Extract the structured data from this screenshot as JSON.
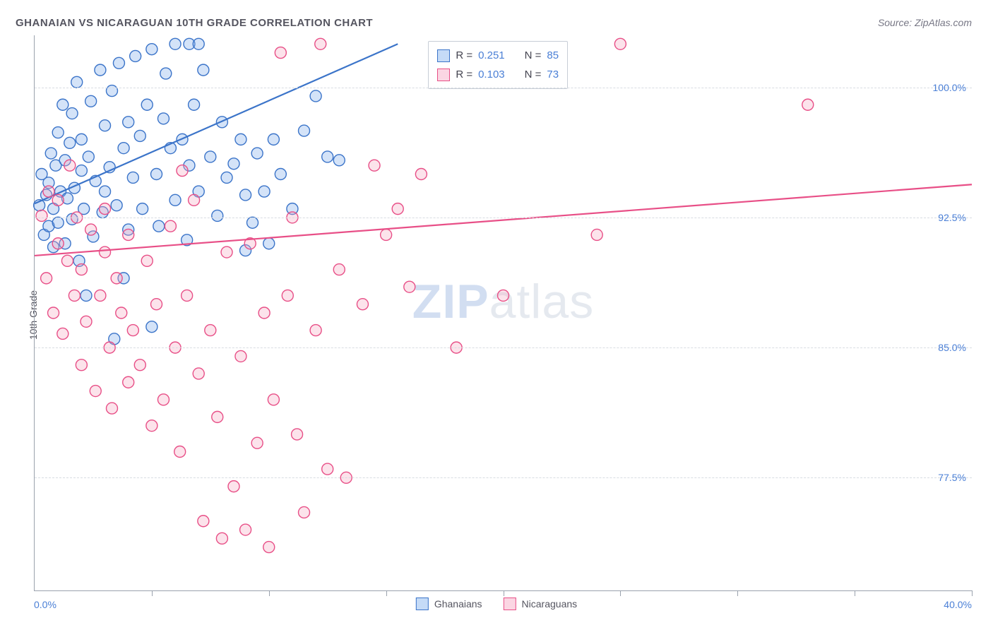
{
  "title": "GHANAIAN VS NICARAGUAN 10TH GRADE CORRELATION CHART",
  "source": "Source: ZipAtlas.com",
  "ylabel": "10th Grade",
  "watermark_a": "ZIP",
  "watermark_b": "atlas",
  "chart": {
    "type": "scatter",
    "xlim": [
      0,
      40
    ],
    "ylim": [
      71,
      103
    ],
    "xticks_major": [
      0,
      5,
      10,
      15,
      20,
      25,
      30,
      35,
      40
    ],
    "yticks": [
      77.5,
      85.0,
      92.5,
      100.0
    ],
    "x_origin_label": "0.0%",
    "x_max_label": "40.0%",
    "y_tick_labels": [
      "77.5%",
      "85.0%",
      "92.5%",
      "100.0%"
    ],
    "background_color": "#ffffff",
    "grid_color": "#d8dce2",
    "axis_color": "#9aa2ad",
    "marker_radius": 8,
    "marker_stroke_width": 1.4,
    "marker_fill_opacity": 0.32,
    "line_width": 2.2,
    "series": [
      {
        "label": "Ghanaians",
        "color_stroke": "#3b74c9",
        "color_fill": "#7aa8e8",
        "R": "0.251",
        "N": "85",
        "trend": {
          "x1": 0,
          "y1": 93.3,
          "x2": 15.5,
          "y2": 102.5
        },
        "points": [
          [
            0.2,
            93.2
          ],
          [
            0.3,
            95.0
          ],
          [
            0.4,
            91.5
          ],
          [
            0.5,
            93.8
          ],
          [
            0.6,
            92.0
          ],
          [
            0.6,
            94.5
          ],
          [
            0.7,
            96.2
          ],
          [
            0.8,
            90.8
          ],
          [
            0.8,
            93.0
          ],
          [
            0.9,
            95.5
          ],
          [
            1.0,
            97.4
          ],
          [
            1.0,
            92.2
          ],
          [
            1.1,
            94.0
          ],
          [
            1.2,
            99.0
          ],
          [
            1.3,
            91.0
          ],
          [
            1.3,
            95.8
          ],
          [
            1.4,
            93.6
          ],
          [
            1.5,
            96.8
          ],
          [
            1.6,
            98.5
          ],
          [
            1.6,
            92.4
          ],
          [
            1.7,
            94.2
          ],
          [
            1.8,
            100.3
          ],
          [
            1.9,
            90.0
          ],
          [
            2.0,
            95.2
          ],
          [
            2.0,
            97.0
          ],
          [
            2.1,
            93.0
          ],
          [
            2.2,
            88.0
          ],
          [
            2.3,
            96.0
          ],
          [
            2.4,
            99.2
          ],
          [
            2.5,
            91.4
          ],
          [
            2.6,
            94.6
          ],
          [
            2.8,
            101.0
          ],
          [
            2.9,
            92.8
          ],
          [
            3.0,
            97.8
          ],
          [
            3.0,
            94.0
          ],
          [
            3.2,
            95.4
          ],
          [
            3.3,
            99.8
          ],
          [
            3.4,
            85.5
          ],
          [
            3.5,
            93.2
          ],
          [
            3.6,
            101.4
          ],
          [
            3.8,
            96.5
          ],
          [
            4.0,
            91.8
          ],
          [
            4.0,
            98.0
          ],
          [
            4.2,
            94.8
          ],
          [
            4.3,
            101.8
          ],
          [
            4.5,
            97.2
          ],
          [
            4.6,
            93.0
          ],
          [
            4.8,
            99.0
          ],
          [
            5.0,
            86.2
          ],
          [
            5.0,
            102.2
          ],
          [
            5.2,
            95.0
          ],
          [
            5.3,
            92.0
          ],
          [
            5.5,
            98.2
          ],
          [
            5.6,
            100.8
          ],
          [
            5.8,
            96.5
          ],
          [
            6.0,
            93.5
          ],
          [
            6.0,
            102.5
          ],
          [
            6.3,
            97.0
          ],
          [
            6.5,
            91.2
          ],
          [
            6.6,
            95.5
          ],
          [
            6.6,
            102.5
          ],
          [
            6.8,
            99.0
          ],
          [
            7.0,
            94.0
          ],
          [
            7.0,
            102.5
          ],
          [
            7.2,
            101.0
          ],
          [
            7.5,
            96.0
          ],
          [
            7.8,
            92.6
          ],
          [
            8.0,
            98.0
          ],
          [
            8.2,
            94.8
          ],
          [
            8.5,
            95.6
          ],
          [
            8.8,
            97.0
          ],
          [
            9.0,
            90.6
          ],
          [
            9.0,
            93.8
          ],
          [
            9.3,
            92.2
          ],
          [
            9.5,
            96.2
          ],
          [
            9.8,
            94.0
          ],
          [
            10.0,
            91.0
          ],
          [
            10.2,
            97.0
          ],
          [
            10.5,
            95.0
          ],
          [
            11.0,
            93.0
          ],
          [
            11.5,
            97.5
          ],
          [
            12.0,
            99.5
          ],
          [
            12.5,
            96.0
          ],
          [
            13.0,
            95.8
          ],
          [
            3.8,
            89.0
          ]
        ]
      },
      {
        "label": "Nicaraguans",
        "color_stroke": "#e84f87",
        "color_fill": "#f7a8c2",
        "R": "0.103",
        "N": "73",
        "trend": {
          "x1": 0,
          "y1": 90.3,
          "x2": 40,
          "y2": 94.4
        },
        "points": [
          [
            0.3,
            92.6
          ],
          [
            0.5,
            89.0
          ],
          [
            0.6,
            94.0
          ],
          [
            0.8,
            87.0
          ],
          [
            1.0,
            91.0
          ],
          [
            1.0,
            93.5
          ],
          [
            1.2,
            85.8
          ],
          [
            1.4,
            90.0
          ],
          [
            1.5,
            95.5
          ],
          [
            1.7,
            88.0
          ],
          [
            1.8,
            92.5
          ],
          [
            2.0,
            84.0
          ],
          [
            2.0,
            89.5
          ],
          [
            2.2,
            86.5
          ],
          [
            2.4,
            91.8
          ],
          [
            2.6,
            82.5
          ],
          [
            2.8,
            88.0
          ],
          [
            3.0,
            93.0
          ],
          [
            3.0,
            90.5
          ],
          [
            3.2,
            85.0
          ],
          [
            3.3,
            81.5
          ],
          [
            3.5,
            89.0
          ],
          [
            3.7,
            87.0
          ],
          [
            4.0,
            83.0
          ],
          [
            4.0,
            91.5
          ],
          [
            4.2,
            86.0
          ],
          [
            4.5,
            84.0
          ],
          [
            4.8,
            90.0
          ],
          [
            5.0,
            80.5
          ],
          [
            5.2,
            87.5
          ],
          [
            5.5,
            82.0
          ],
          [
            5.8,
            92.0
          ],
          [
            6.0,
            85.0
          ],
          [
            6.2,
            79.0
          ],
          [
            6.5,
            88.0
          ],
          [
            6.8,
            93.5
          ],
          [
            7.0,
            83.5
          ],
          [
            7.2,
            75.0
          ],
          [
            7.5,
            86.0
          ],
          [
            7.8,
            81.0
          ],
          [
            8.0,
            74.0
          ],
          [
            8.2,
            90.5
          ],
          [
            8.5,
            77.0
          ],
          [
            8.8,
            84.5
          ],
          [
            9.0,
            74.5
          ],
          [
            9.2,
            91.0
          ],
          [
            9.5,
            79.5
          ],
          [
            9.8,
            87.0
          ],
          [
            10.0,
            73.5
          ],
          [
            10.2,
            82.0
          ],
          [
            10.5,
            102.0
          ],
          [
            10.8,
            88.0
          ],
          [
            11.0,
            92.5
          ],
          [
            11.2,
            80.0
          ],
          [
            11.5,
            75.5
          ],
          [
            12.0,
            86.0
          ],
          [
            12.2,
            102.5
          ],
          [
            12.5,
            78.0
          ],
          [
            13.0,
            89.5
          ],
          [
            13.3,
            77.5
          ],
          [
            14.0,
            87.5
          ],
          [
            14.5,
            95.5
          ],
          [
            15.0,
            91.5
          ],
          [
            15.5,
            93.0
          ],
          [
            16.0,
            88.5
          ],
          [
            16.5,
            95.0
          ],
          [
            18.0,
            85.0
          ],
          [
            20.0,
            88.0
          ],
          [
            21.0,
            101.0
          ],
          [
            24.0,
            91.5
          ],
          [
            25.0,
            102.5
          ],
          [
            33.0,
            99.0
          ],
          [
            6.3,
            95.2
          ]
        ]
      }
    ]
  },
  "top_legend": {
    "rows": [
      {
        "swatch_stroke": "#3b74c9",
        "swatch_fill": "#c5dbf7",
        "r_label": "R =",
        "r_val": "0.251",
        "n_label": "N =",
        "n_val": "85"
      },
      {
        "swatch_stroke": "#e84f87",
        "swatch_fill": "#fbd6e3",
        "r_label": "R =",
        "r_val": "0.103",
        "n_label": "N =",
        "n_val": "73"
      }
    ]
  },
  "bottom_legend": {
    "items": [
      {
        "swatch_stroke": "#3b74c9",
        "swatch_fill": "#c5dbf7",
        "label": "Ghanaians"
      },
      {
        "swatch_stroke": "#e84f87",
        "swatch_fill": "#fbd6e3",
        "label": "Nicaraguans"
      }
    ]
  }
}
